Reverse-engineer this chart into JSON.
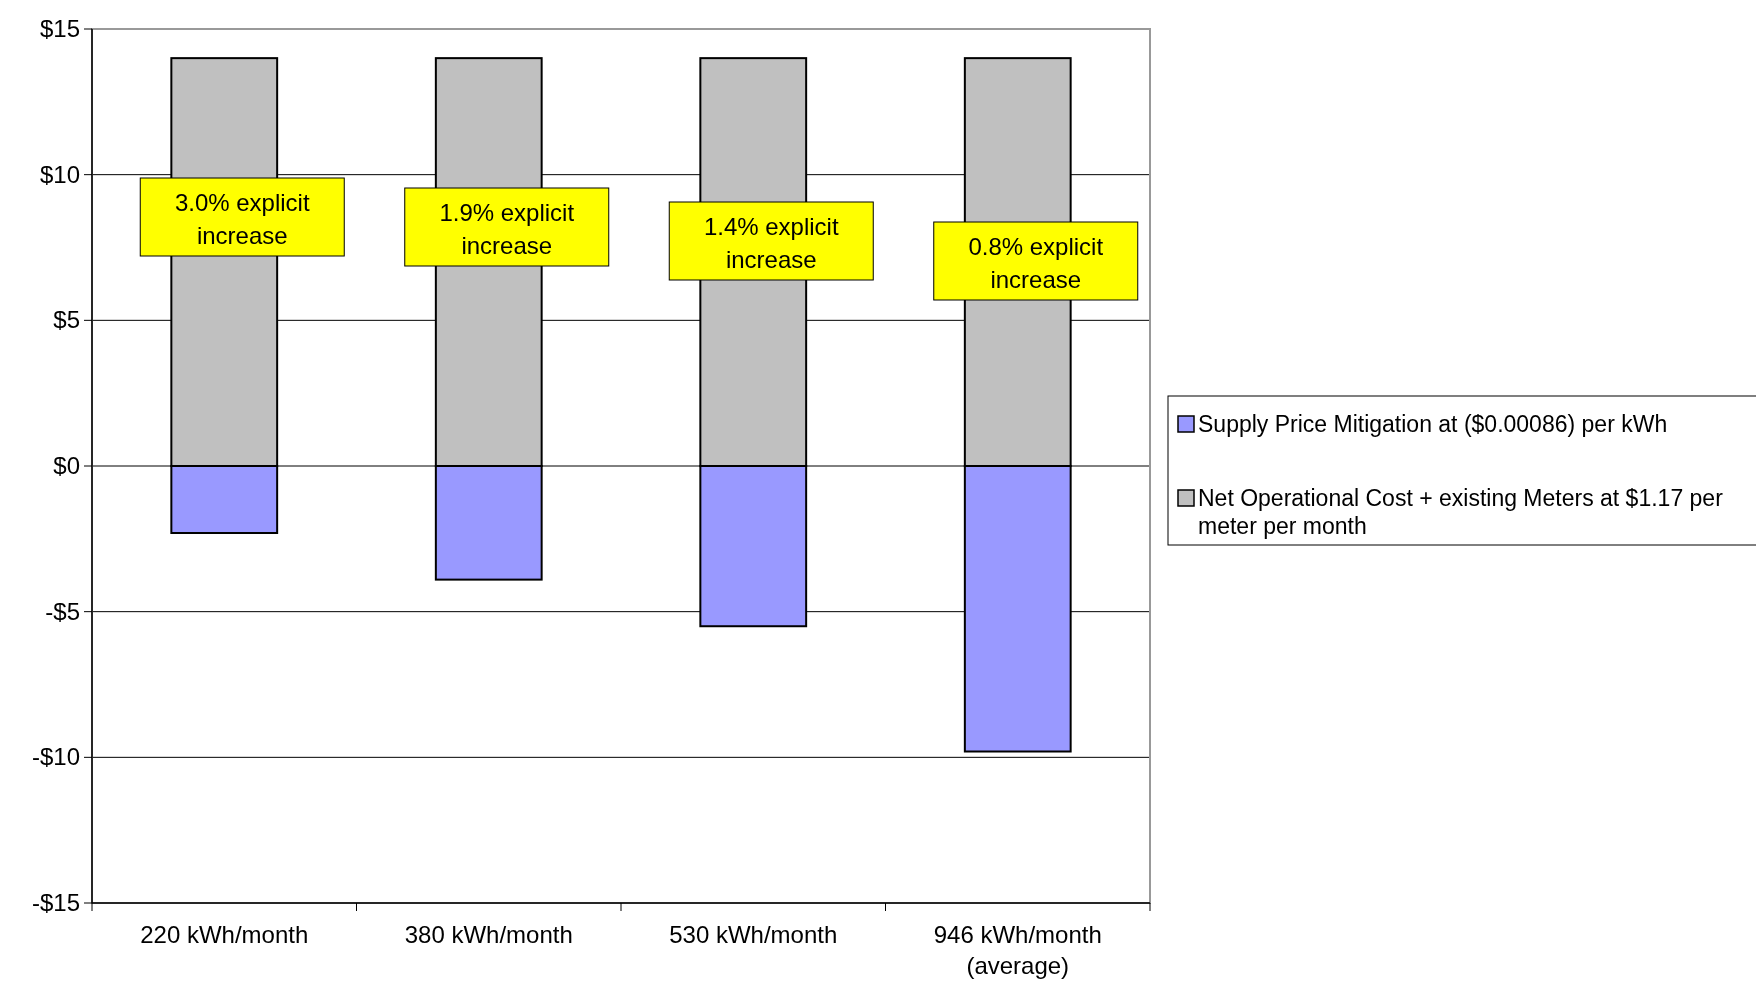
{
  "chart_data": {
    "type": "bar",
    "stacked": true,
    "categories": [
      "220 kWh/month",
      "380 kWh/month",
      "530 kWh/month",
      "946 kWh/month\n(average)"
    ],
    "series": [
      {
        "name": "Supply Price Mitigation at ($0.00086) per kWh",
        "color": "#9999ff",
        "values": [
          -2.3,
          -3.9,
          -5.5,
          -9.8
        ]
      },
      {
        "name": "Net Operational Cost + existing Meters at $1.17 per meter per month",
        "color": "#c0c0c0",
        "values": [
          14,
          14,
          14,
          14
        ]
      }
    ],
    "ylim": [
      -15,
      15
    ],
    "yticks": [
      {
        "value": -15,
        "label": "-$15"
      },
      {
        "value": -10,
        "label": "-$10"
      },
      {
        "value": -5,
        "label": "-$5"
      },
      {
        "value": 0,
        "label": "$0"
      },
      {
        "value": 5,
        "label": "$5"
      },
      {
        "value": 10,
        "label": "$10"
      },
      {
        "value": 15,
        "label": "$15"
      }
    ],
    "grid": "y",
    "legend": "right",
    "annotations": [
      "3.0% explicit\nincrease",
      "1.9% explicit\nincrease",
      "1.4% explicit\nincrease",
      "0.8% explicit\nincrease"
    ]
  }
}
